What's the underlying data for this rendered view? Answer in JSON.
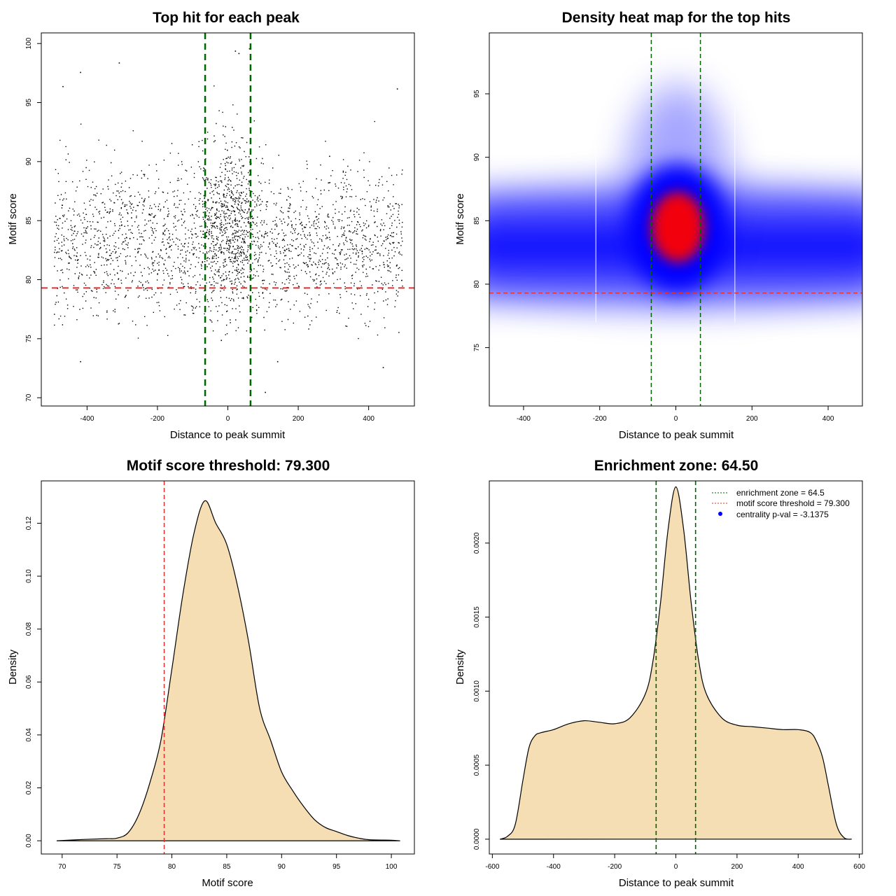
{
  "colors": {
    "zone_line": "#006400",
    "threshold_line": "#e03030",
    "density_fill": "#f5deb3",
    "density_stroke": "#000000",
    "heat_low": "#0000ff",
    "heat_high": "#ff0000",
    "points": "#000000",
    "legend_dot": "#0000ff"
  },
  "chart_data": [
    {
      "id": "scatter",
      "type": "scatter",
      "title": "Top hit for each peak",
      "xlabel": "Distance to peak summit",
      "ylabel": "Motif score",
      "xlim": [
        -530,
        530
      ],
      "ylim": [
        69.3,
        100.9
      ],
      "xticks": [
        -400,
        -200,
        0,
        200,
        400
      ],
      "yticks": [
        70,
        75,
        80,
        85,
        90,
        95,
        100
      ],
      "x_range_of_points": [
        -495,
        495
      ],
      "score_center": 83.5,
      "vlines": [
        -64.5,
        64.5
      ],
      "hline": 79.3,
      "outliers": [
        {
          "x": -420,
          "y": 97.6
        },
        {
          "x": -310,
          "y": 98.4
        },
        {
          "x": 20,
          "y": 99.4
        },
        {
          "x": 30,
          "y": 99.2
        },
        {
          "x": 60,
          "y": 99.6
        },
        {
          "x": -420,
          "y": 73.1
        },
        {
          "x": -20,
          "y": 74.9
        },
        {
          "x": 105,
          "y": 70.5
        },
        {
          "x": 140,
          "y": 73.1
        },
        {
          "x": 440,
          "y": 72.6
        },
        {
          "x": 480,
          "y": 96.2
        },
        {
          "x": -470,
          "y": 96.4
        }
      ]
    },
    {
      "id": "heatmap",
      "type": "heatmap",
      "title": "Density heat map for the top hits",
      "xlabel": "Distance to peak summit",
      "ylabel": "Motif score",
      "xlim": [
        -490,
        490
      ],
      "ylim": [
        70.4,
        99.8
      ],
      "xticks": [
        -400,
        -200,
        0,
        200,
        400
      ],
      "yticks": [
        75,
        80,
        85,
        90,
        95
      ],
      "vlines": [
        -64.5,
        64.5
      ],
      "hline": 79.3,
      "hot_spot": {
        "x": 5,
        "y": 84.5
      },
      "background_band": {
        "y": 83,
        "ylo": 79,
        "yhi": 87
      }
    },
    {
      "id": "score_density",
      "type": "area",
      "title": "Motif score threshold: 79.300",
      "xlabel": "Motif score",
      "ylabel": "Density",
      "xlim": [
        68.1,
        102.1
      ],
      "ylim": [
        -0.005,
        0.136
      ],
      "xticks": [
        70,
        75,
        80,
        85,
        90,
        95,
        100
      ],
      "yticks": [
        0.0,
        0.02,
        0.04,
        0.06,
        0.08,
        0.1,
        0.12
      ],
      "ytick_labels": [
        "0.00",
        "0.02",
        "0.04",
        "0.06",
        "0.08",
        "0.10",
        "0.12"
      ],
      "vline": 79.3,
      "x": [
        69.5,
        72,
        74,
        75,
        76,
        77,
        78,
        79,
        80,
        81,
        82,
        83,
        84,
        85,
        86,
        87,
        88,
        89,
        90,
        91,
        92,
        93,
        94,
        95,
        96,
        97,
        98,
        100,
        100.8
      ],
      "y": [
        0,
        0.0005,
        0.0008,
        0.001,
        0.003,
        0.01,
        0.022,
        0.038,
        0.065,
        0.093,
        0.116,
        0.1285,
        0.12,
        0.112,
        0.096,
        0.075,
        0.05,
        0.038,
        0.026,
        0.019,
        0.013,
        0.008,
        0.005,
        0.0035,
        0.002,
        0.001,
        0.0004,
        0.0002,
        0
      ]
    },
    {
      "id": "distance_density",
      "type": "area",
      "title": "Enrichment zone: 64.50",
      "xlabel": "Distance to peak summit",
      "ylabel": "Density",
      "xlim": [
        -610,
        610
      ],
      "ylim": [
        -0.0001,
        0.00242
      ],
      "xticks": [
        -600,
        -400,
        -200,
        0,
        200,
        400,
        600
      ],
      "yticks": [
        0.0,
        0.0005,
        0.001,
        0.0015,
        0.002
      ],
      "ytick_labels": [
        "0.0000",
        "0.0005",
        "0.0010",
        "0.0015",
        "0.0020"
      ],
      "vlines": [
        -64.5,
        64.5
      ],
      "x": [
        -575,
        -550,
        -525,
        -500,
        -480,
        -460,
        -440,
        -400,
        -350,
        -300,
        -250,
        -200,
        -150,
        -100,
        -75,
        -50,
        -25,
        0,
        25,
        50,
        75,
        100,
        150,
        200,
        250,
        300,
        350,
        400,
        440,
        460,
        480,
        500,
        525,
        550,
        575
      ],
      "y": [
        0,
        2e-05,
        0.0001,
        0.0004,
        0.00062,
        0.0007,
        0.00072,
        0.00074,
        0.00078,
        0.0008,
        0.00079,
        0.00078,
        0.00082,
        0.00098,
        0.0012,
        0.0016,
        0.0021,
        0.00238,
        0.0021,
        0.0016,
        0.0012,
        0.00098,
        0.00082,
        0.00077,
        0.00076,
        0.00075,
        0.00074,
        0.00074,
        0.00072,
        0.00066,
        0.00055,
        0.00035,
        0.0001,
        1e-05,
        0
      ],
      "legend": [
        {
          "label": "enrichment zone = 64.5",
          "style": "zone"
        },
        {
          "label": "motif score threshold = 79.300",
          "style": "threshold"
        },
        {
          "label": "centrality p-val = -3.1375",
          "style": "dot"
        }
      ]
    }
  ]
}
